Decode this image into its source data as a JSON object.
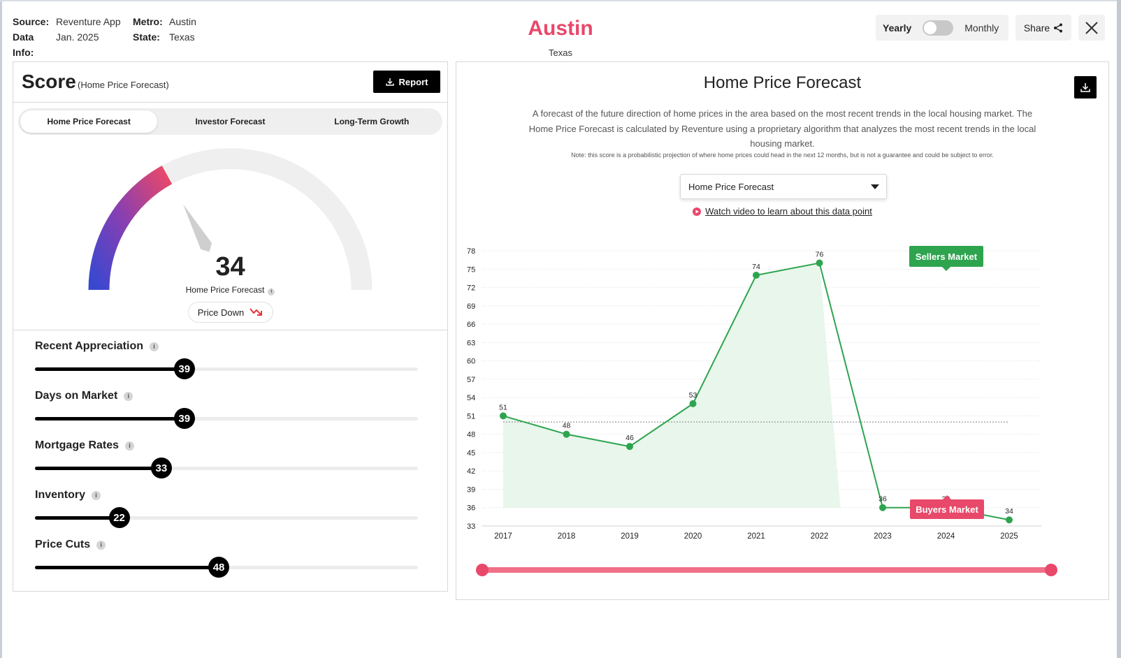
{
  "header": {
    "source_label": "Source:",
    "source_value": "Reventure App",
    "data_info_label": "Data Info:",
    "data_info_value": "Jan. 2025",
    "metro_label": "Metro:",
    "metro_value": "Austin",
    "state_label": "State:",
    "state_value": "Texas",
    "city_title": "Austin",
    "city_subtitle": "Texas",
    "toggle_left": "Yearly",
    "toggle_right": "Monthly",
    "share_label": "Share"
  },
  "score_panel": {
    "title": "Score",
    "subtitle": "(Home Price Forecast)",
    "report_label": "Report",
    "tabs": [
      {
        "label": "Home Price Forecast",
        "active": true
      },
      {
        "label": "Investor Forecast",
        "active": false
      },
      {
        "label": "Long-Term Growth",
        "active": false
      }
    ],
    "gauge": {
      "value": 34,
      "max": 100,
      "value_text": "34",
      "label": "Home Price Forecast",
      "status": "Price Down"
    },
    "metrics": [
      {
        "label": "Recent Appreciation",
        "value": 39,
        "value_text": "39"
      },
      {
        "label": "Days on Market",
        "value": 39,
        "value_text": "39"
      },
      {
        "label": "Mortgage Rates",
        "value": 33,
        "value_text": "33"
      },
      {
        "label": "Inventory",
        "value": 22,
        "value_text": "22"
      },
      {
        "label": "Price Cuts",
        "value": 48,
        "value_text": "48"
      }
    ]
  },
  "chart_panel": {
    "title": "Home Price Forecast",
    "description": "A forecast of the future direction of home prices in the area based on the most recent trends in the local housing market. The Home Price Forecast is calculated by Reventure using a proprietary algorithm that analyzes the most recent trends in the local housing market.",
    "note": "Note: this score is a probabilistic projection of where home prices could head in the next 12 months, but is not a guarantee and could be subject to error.",
    "select_value": "Home Price Forecast",
    "video_link": "Watch video to learn about this data point"
  },
  "chart_data": {
    "type": "area",
    "x": [
      "2017",
      "2018",
      "2019",
      "2020",
      "2021",
      "2022",
      "2023",
      "2024",
      "2025"
    ],
    "values": [
      51,
      48,
      46,
      53,
      74,
      76,
      36,
      36,
      34
    ],
    "value_labels": [
      "51",
      "48",
      "46",
      "53",
      "74",
      "76",
      "36",
      "36",
      "34"
    ],
    "y_ticks": [
      33,
      36,
      39,
      42,
      45,
      48,
      51,
      54,
      57,
      60,
      63,
      66,
      69,
      72,
      75,
      78
    ],
    "ylim": [
      33,
      78
    ],
    "reference_line": 50,
    "grid": true,
    "annotations": [
      {
        "label": "Sellers Market",
        "color": "#2ea44f"
      },
      {
        "label": "Buyers Market",
        "color": "#e8486a"
      }
    ],
    "colors": {
      "line": "#2ea44f",
      "area": "#e6f5ea",
      "range_slider": "#f07088"
    }
  }
}
